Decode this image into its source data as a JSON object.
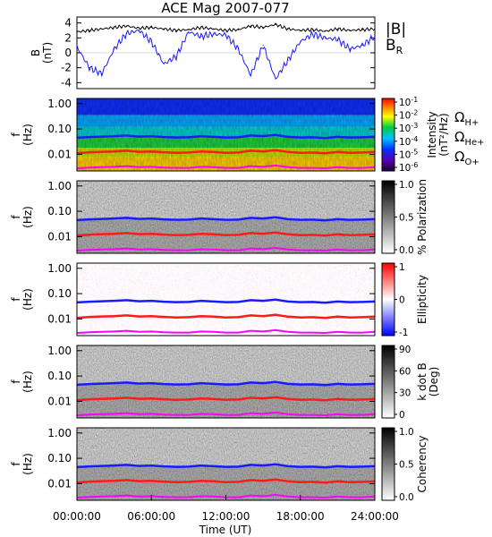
{
  "title": "ACE Mag 2007-077",
  "xlabel": "Time (UT)",
  "x_ticks": [
    "00:00:00",
    "06:00:00",
    "12:00:00",
    "18:00:00",
    "24:00:00"
  ],
  "colors": {
    "B_total": "#000000",
    "B_R": "#1a1aff",
    "H_plus": "#1a1aff",
    "He_plus": "#ff1a1a",
    "O_plus": "#ff00ff"
  },
  "chart_data": [
    {
      "type": "line",
      "panel": "magnetic-field",
      "ylabel_main": "B",
      "ylabel_unit": "(nT)",
      "ylim": [
        -4.8,
        4.8
      ],
      "y_ticks": [
        "4",
        "2",
        "0",
        "-2",
        "-4"
      ],
      "legend": {
        "total_main": "|B|",
        "radial_main": "B",
        "radial_sub": "R"
      },
      "x": [
        0,
        1,
        2,
        3,
        4,
        5,
        6,
        7,
        8,
        9,
        10,
        11,
        12,
        13,
        14,
        15,
        16,
        17,
        18,
        19,
        20,
        21,
        22,
        23,
        24
      ],
      "series": [
        {
          "name": "|B|",
          "color": "#000000",
          "values": [
            2.8,
            3.0,
            3.2,
            3.4,
            3.6,
            3.3,
            3.4,
            3.2,
            3.0,
            3.1,
            3.4,
            3.2,
            3.0,
            3.1,
            3.6,
            3.4,
            3.8,
            3.2,
            3.0,
            3.1,
            2.9,
            3.2,
            3.0,
            3.1,
            3.2
          ]
        },
        {
          "name": "B_R",
          "color": "#1a1aff",
          "values": [
            0.8,
            -2.0,
            -2.8,
            0.5,
            2.6,
            3.0,
            1.5,
            -1.5,
            -0.5,
            2.8,
            2.2,
            2.5,
            2.4,
            0.5,
            -3.0,
            1.0,
            -3.5,
            -1.0,
            1.5,
            2.5,
            2.0,
            1.8,
            0.5,
            1.0,
            2.2
          ]
        }
      ]
    },
    {
      "type": "heatmap",
      "panel": "intensity",
      "ylabel_main": "f",
      "ylabel_unit": "(Hz)",
      "y_ticks": [
        "1.00",
        "0.10",
        "0.01"
      ],
      "colorbar_label": "Intensity",
      "colorbar_unit": "(nT²/Hz)",
      "colorbar_ticks": [
        {
          "base": "10",
          "exp": "-1"
        },
        {
          "base": "10",
          "exp": "-2"
        },
        {
          "base": "10",
          "exp": "-3"
        },
        {
          "base": "10",
          "exp": "-4"
        },
        {
          "base": "10",
          "exp": "-5"
        },
        {
          "base": "10",
          "exp": "-6"
        }
      ],
      "gyro_labels": [
        {
          "main": "Ω",
          "sub": "H+",
          "color": "#1a1aff"
        },
        {
          "main": "Ω",
          "sub": "He+",
          "color": "#ff1a1a"
        },
        {
          "main": "Ω",
          "sub": "O+",
          "color": "#ff00ff"
        }
      ]
    },
    {
      "type": "heatmap",
      "panel": "polarization",
      "ylabel_main": "f",
      "ylabel_unit": "(Hz)",
      "y_ticks": [
        "1.00",
        "0.10",
        "0.01"
      ],
      "colorbar_label": "% Polarization",
      "colorbar_ticks": [
        "1.0",
        "0.5",
        "0.0"
      ]
    },
    {
      "type": "heatmap",
      "panel": "ellipticity",
      "ylabel_main": "f",
      "ylabel_unit": "(Hz)",
      "y_ticks": [
        "1.00",
        "0.10",
        "0.01"
      ],
      "colorbar_label": "Ellipticity",
      "colorbar_ticks": [
        "1",
        "0",
        "-1"
      ]
    },
    {
      "type": "heatmap",
      "panel": "k-dot-b",
      "ylabel_main": "f",
      "ylabel_unit": "(Hz)",
      "y_ticks": [
        "1.00",
        "0.10",
        "0.01"
      ],
      "colorbar_label": "k dot B",
      "colorbar_unit": "(Deg)",
      "colorbar_ticks": [
        "90",
        "60",
        "30",
        "0"
      ]
    },
    {
      "type": "heatmap",
      "panel": "coherency",
      "ylabel_main": "f",
      "ylabel_unit": "(Hz)",
      "y_ticks": [
        "1.00",
        "0.10",
        "0.01"
      ],
      "colorbar_label": "Coherency",
      "colorbar_ticks": [
        "1.0",
        "0.5",
        "0.0"
      ]
    }
  ],
  "gyro_frequency_hz": {
    "x": [
      0,
      1,
      2,
      3,
      4,
      5,
      6,
      7,
      8,
      9,
      10,
      11,
      12,
      13,
      14,
      15,
      16,
      17,
      18,
      19,
      20,
      21,
      22,
      23,
      24
    ],
    "H_plus": [
      0.045,
      0.048,
      0.05,
      0.052,
      0.055,
      0.05,
      0.052,
      0.048,
      0.046,
      0.047,
      0.052,
      0.049,
      0.046,
      0.047,
      0.055,
      0.052,
      0.058,
      0.049,
      0.046,
      0.047,
      0.044,
      0.049,
      0.046,
      0.047,
      0.049
    ],
    "He_plus": [
      0.011,
      0.012,
      0.0125,
      0.013,
      0.0138,
      0.0125,
      0.013,
      0.012,
      0.0115,
      0.0118,
      0.013,
      0.0123,
      0.0115,
      0.0118,
      0.0138,
      0.013,
      0.0145,
      0.0123,
      0.0115,
      0.0118,
      0.011,
      0.0123,
      0.0115,
      0.0118,
      0.0123
    ],
    "O_plus": [
      0.0028,
      0.003,
      0.0031,
      0.0032,
      0.0034,
      0.0031,
      0.0032,
      0.003,
      0.0029,
      0.0029,
      0.0032,
      0.0031,
      0.0029,
      0.0029,
      0.0034,
      0.0032,
      0.0036,
      0.0031,
      0.0029,
      0.0029,
      0.0028,
      0.0031,
      0.0029,
      0.0029,
      0.0031
    ]
  }
}
